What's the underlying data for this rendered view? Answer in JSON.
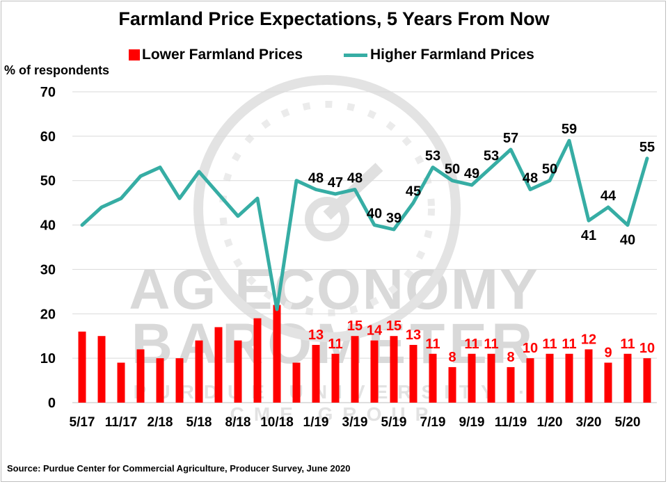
{
  "chart_data": {
    "type": "bar+line",
    "title": "Farmland Price Expectations, 5 Years From Now",
    "ylabel": "% of respondents",
    "ylim": [
      0,
      70
    ],
    "yticks": [
      0,
      10,
      20,
      30,
      40,
      50,
      60,
      70
    ],
    "grid": true,
    "legend_position": "top",
    "xtick_labels": [
      "5/17",
      "11/17",
      "2/18",
      "5/18",
      "8/18",
      "10/18",
      "1/19",
      "3/19",
      "5/19",
      "7/19",
      "9/19",
      "11/19",
      "1/20",
      "3/20",
      "5/20"
    ],
    "xtick_indices": [
      0,
      2,
      4,
      6,
      8,
      10,
      12,
      14,
      16,
      18,
      20,
      22,
      24,
      26,
      28
    ],
    "x_count": 30,
    "series": [
      {
        "name": "Lower Farmland Prices",
        "kind": "bar",
        "color": "#ff0000",
        "values": [
          16,
          15,
          9,
          12,
          10,
          10,
          14,
          17,
          14,
          19,
          22,
          9,
          13,
          11,
          15,
          14,
          15,
          13,
          11,
          8,
          11,
          11,
          8,
          10,
          11,
          11,
          12,
          9,
          11,
          10
        ],
        "labels": [
          "",
          "",
          "",
          "",
          "",
          "",
          "",
          "",
          "",
          "",
          "",
          "",
          "13",
          "11",
          "15",
          "14",
          "15",
          "13",
          "11",
          "8",
          "11",
          "11",
          "8",
          "10",
          "11",
          "11",
          "12",
          "9",
          "11",
          "10"
        ]
      },
      {
        "name": "Higher Farmland Prices",
        "kind": "line",
        "color": "#36ada4",
        "values": [
          40,
          44,
          46,
          51,
          53,
          46,
          52,
          47,
          42,
          46,
          21,
          50,
          48,
          47,
          48,
          40,
          39,
          45,
          53,
          50,
          49,
          53,
          57,
          48,
          50,
          59,
          41,
          44,
          40,
          55
        ],
        "labels": [
          "",
          "",
          "",
          "",
          "",
          "",
          "",
          "",
          "",
          "",
          "",
          "",
          "48",
          "47",
          "48",
          "40",
          "39",
          "45",
          "53",
          "50",
          "49",
          "53",
          "57",
          "48",
          "50",
          "59",
          "41",
          "44",
          "40",
          "55"
        ],
        "label_below": [
          26,
          28
        ]
      }
    ]
  },
  "watermark": {
    "line1": "AG ECONOMY",
    "line2": "BAROMETER",
    "line3": "PURDUE UNIVERSITY · CME GROUP"
  },
  "source": "Source: Purdue Center for Commercial Agriculture, Producer Survey, June 2020",
  "colors": {
    "bar": "#ff0000",
    "line": "#36ada4",
    "grid": "#d9d9d9",
    "watermark": "#d9d9d9"
  }
}
